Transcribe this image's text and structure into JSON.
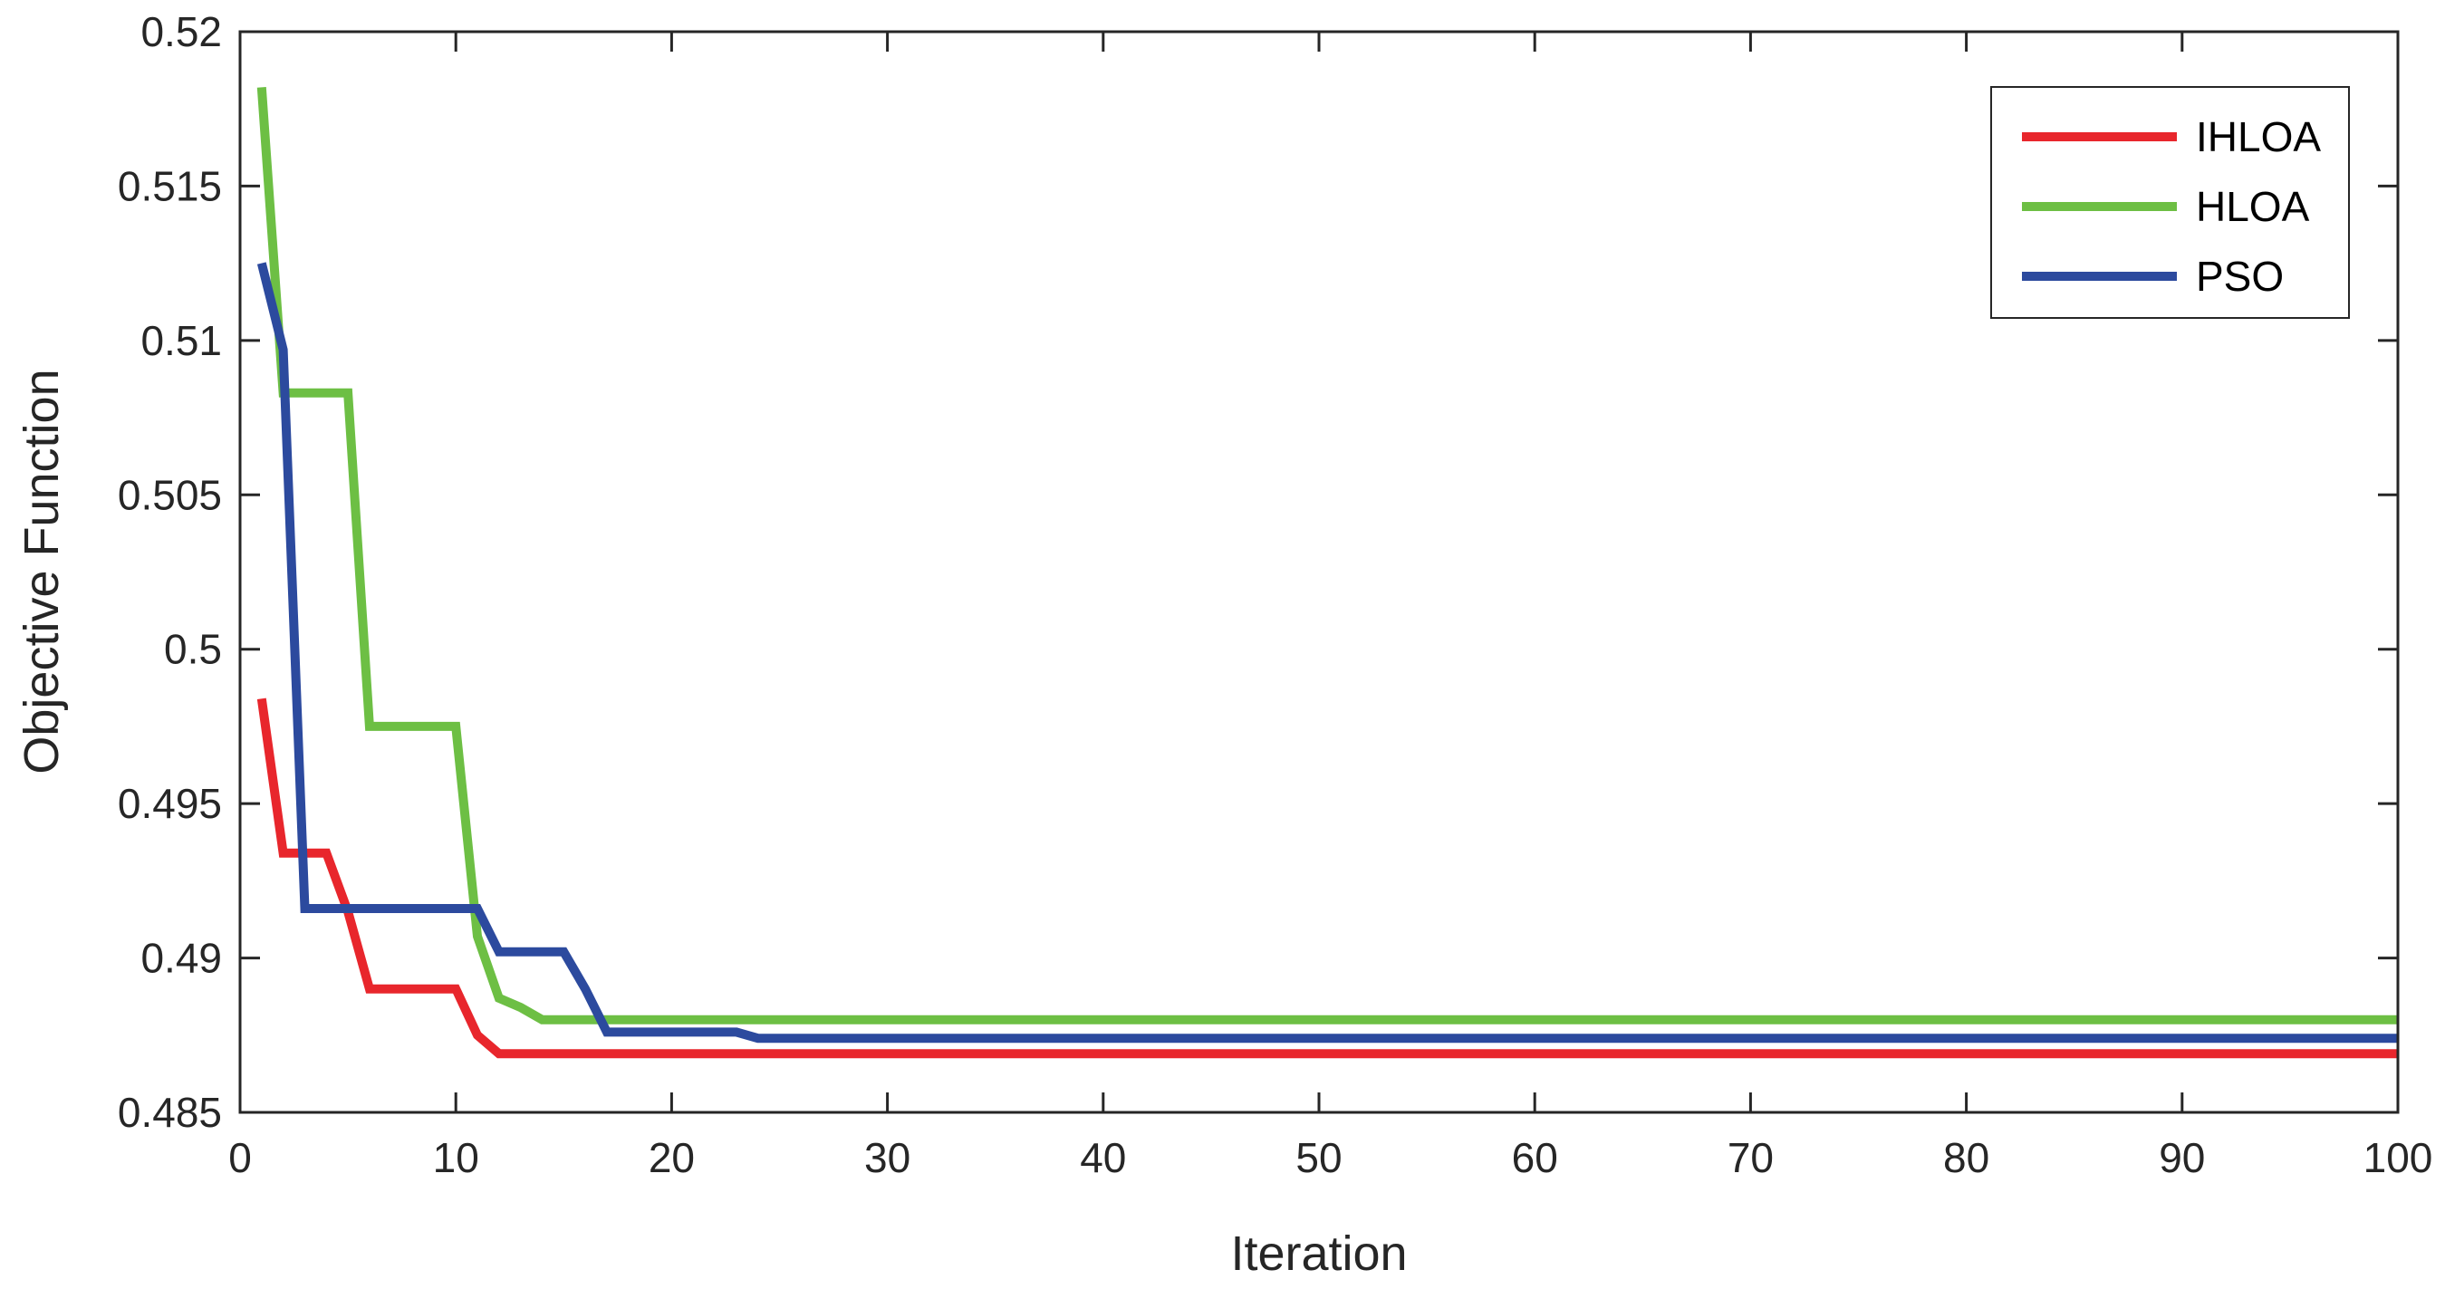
{
  "chart_data": {
    "type": "line",
    "xlabel": "Iteration",
    "ylabel": "Objective Function",
    "xlim": [
      0,
      100
    ],
    "ylim": [
      0.485,
      0.52
    ],
    "xticks": [
      0,
      10,
      20,
      30,
      40,
      50,
      60,
      70,
      80,
      90,
      100
    ],
    "xtick_labels": [
      "0",
      "10",
      "20",
      "30",
      "40",
      "50",
      "60",
      "70",
      "80",
      "90",
      "100"
    ],
    "yticks": [
      0.485,
      0.49,
      0.495,
      0.5,
      0.505,
      0.51,
      0.515,
      0.52
    ],
    "ytick_labels": [
      "0.485",
      "0.49",
      "0.495",
      "0.5",
      "0.505",
      "0.51",
      "0.515",
      "0.52"
    ],
    "grid": false,
    "legend_position": "top-right",
    "series": [
      {
        "name": "IHLOA",
        "color": "#e8262c",
        "x": [
          1,
          2,
          3,
          4,
          5,
          6,
          7,
          8,
          9,
          10,
          11,
          12,
          100
        ],
        "y": [
          0.4984,
          0.4934,
          0.4934,
          0.4934,
          0.4915,
          0.489,
          0.489,
          0.489,
          0.489,
          0.489,
          0.4875,
          0.4869,
          0.4869
        ]
      },
      {
        "name": "HLOA",
        "color": "#6dbf44",
        "x": [
          1,
          2,
          3,
          4,
          5,
          6,
          7,
          8,
          9,
          10,
          11,
          12,
          13,
          14,
          15,
          100
        ],
        "y": [
          0.5182,
          0.5083,
          0.5083,
          0.5083,
          0.5083,
          0.4975,
          0.4975,
          0.4975,
          0.4975,
          0.4975,
          0.4907,
          0.4887,
          0.4884,
          0.488,
          0.488,
          0.488
        ]
      },
      {
        "name": "PSO",
        "color": "#2c4a9e",
        "x": [
          1,
          2,
          3,
          4,
          5,
          6,
          7,
          8,
          9,
          10,
          11,
          12,
          13,
          14,
          15,
          16,
          17,
          18,
          19,
          20,
          21,
          22,
          23,
          24,
          100
        ],
        "y": [
          0.5125,
          0.5097,
          0.4916,
          0.4916,
          0.4916,
          0.4916,
          0.4916,
          0.4916,
          0.4916,
          0.4916,
          0.4916,
          0.4902,
          0.4902,
          0.4902,
          0.4902,
          0.489,
          0.4876,
          0.4876,
          0.4876,
          0.4876,
          0.4876,
          0.4876,
          0.4876,
          0.4874,
          0.4874
        ]
      }
    ]
  }
}
